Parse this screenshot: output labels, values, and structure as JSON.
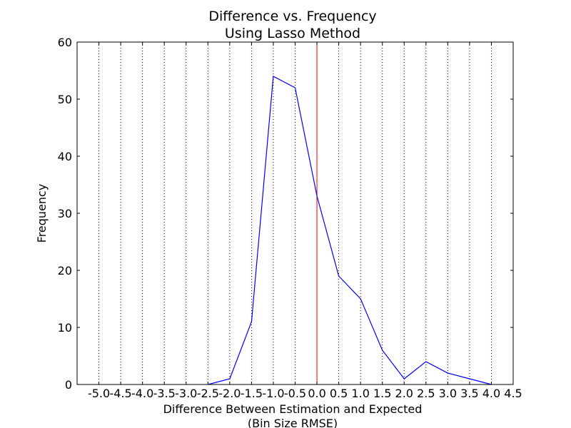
{
  "chart_data": {
    "type": "line",
    "title_lines": [
      "Difference vs. Frequency",
      "Using Lasso Method"
    ],
    "xlabel_lines": [
      "Difference Between Estimation and Expected",
      "(Bin Size RMSE)"
    ],
    "ylabel": "Frequency",
    "xlim": [
      -5.5,
      4.5
    ],
    "ylim": [
      0,
      60
    ],
    "xticks": [
      -5.0,
      -4.5,
      -4.0,
      -3.5,
      -3.0,
      -2.5,
      -2.0,
      -1.5,
      -1.0,
      -0.5,
      0.0,
      0.5,
      1.0,
      1.5,
      2.0,
      2.5,
      3.0,
      3.5,
      4.0,
      4.5
    ],
    "xtick_labels": [
      "-5.0",
      "-4.5",
      "-4.0",
      "-3.5",
      "-3.0",
      "-2.5",
      "-2.0",
      "-1.5",
      "-1.0",
      "-0.5",
      "0.0",
      "0.5",
      "1.0",
      "1.5",
      "2.0",
      "2.5",
      "3.0",
      "3.5",
      "4.0",
      "4.5"
    ],
    "yticks": [
      0,
      10,
      20,
      30,
      40,
      50,
      60
    ],
    "ytick_labels": [
      "0",
      "10",
      "20",
      "30",
      "40",
      "50",
      "60"
    ],
    "grid": "vertical dotted",
    "series": [
      {
        "color": "#0000ff",
        "x": [
          -2.5,
          -2.0,
          -1.5,
          -1.0,
          -0.5,
          0.0,
          0.5,
          1.0,
          1.5,
          2.0,
          2.5,
          3.0,
          3.5,
          4.0
        ],
        "values": [
          0,
          1,
          11,
          54,
          52,
          33,
          19,
          15,
          6,
          1,
          4,
          2,
          1,
          0
        ]
      }
    ],
    "reference_line": {
      "x": 0.0,
      "color": "#ff0000"
    }
  }
}
